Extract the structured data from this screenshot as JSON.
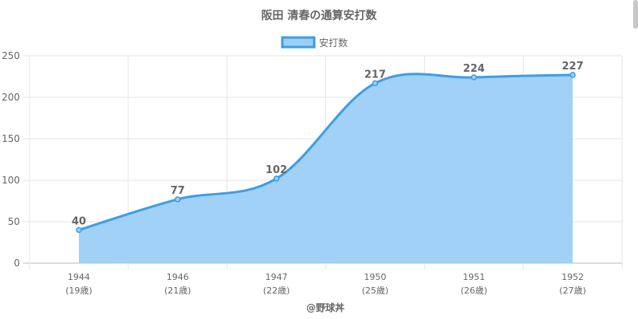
{
  "chart_data": {
    "type": "area",
    "title": "阪田 清春の通算安打数",
    "legend_label": "安打数",
    "legend_position": "top",
    "categories": [
      "1944",
      "1946",
      "1947",
      "1950",
      "1951",
      "1952"
    ],
    "sub_labels": [
      "(19歳)",
      "(21歳)",
      "(22歳)",
      "(25歳)",
      "(26歳)",
      "(27歳)"
    ],
    "values": [
      40,
      77,
      102,
      217,
      224,
      227
    ],
    "ylim": [
      0,
      250
    ],
    "yticks": [
      0,
      50,
      100,
      150,
      200,
      250
    ],
    "grid": true,
    "line_color": "#3d9ee5",
    "fill_color": "#9ccff5",
    "credit": "@野球丼"
  }
}
